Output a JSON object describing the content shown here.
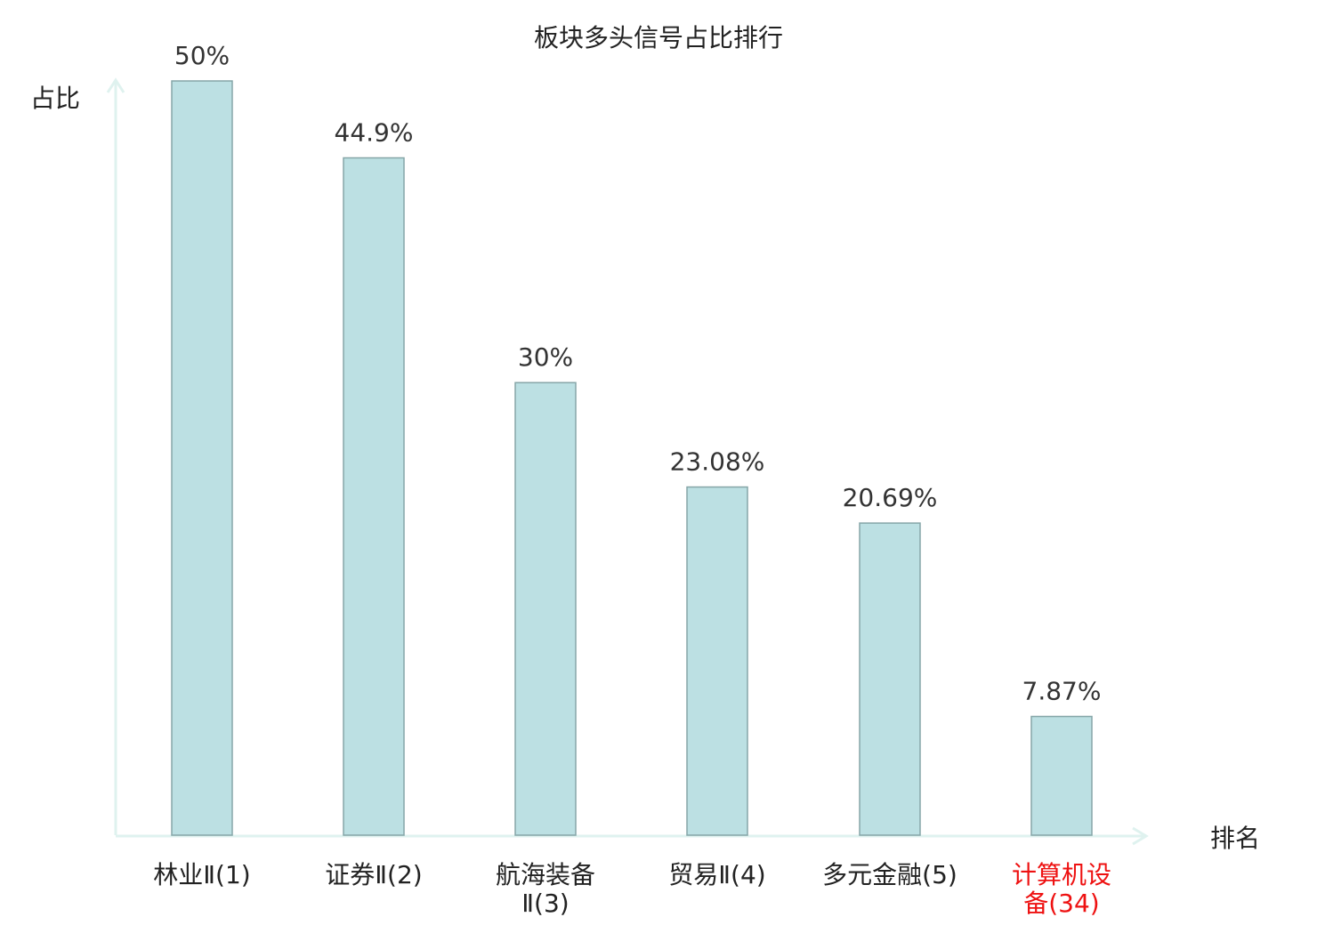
{
  "chart_data": {
    "type": "bar",
    "title": "板块多头信号占比排行",
    "ylabel": "占比",
    "xlabel": "排名",
    "categories": [
      [
        "林业Ⅱ(1)"
      ],
      [
        "证券Ⅱ(2)"
      ],
      [
        "航海装备",
        "Ⅱ(3)"
      ],
      [
        "贸易Ⅱ(4)"
      ],
      [
        "多元金融(5)"
      ],
      [
        "计算机设",
        "备(34)"
      ]
    ],
    "values": [
      50,
      44.9,
      30,
      23.08,
      20.69,
      7.87
    ],
    "value_labels": [
      "50%",
      "44.9%",
      "30%",
      "23.08%",
      "20.69%",
      "7.87%"
    ],
    "highlight_index": 5,
    "ylim": [
      0,
      50
    ],
    "grid": false,
    "colors": {
      "bar_fill": "#bce0e3",
      "bar_stroke": "#86a6a8",
      "axis": "#dff2ef",
      "text": "#333333",
      "highlight": "#ee1111"
    }
  }
}
